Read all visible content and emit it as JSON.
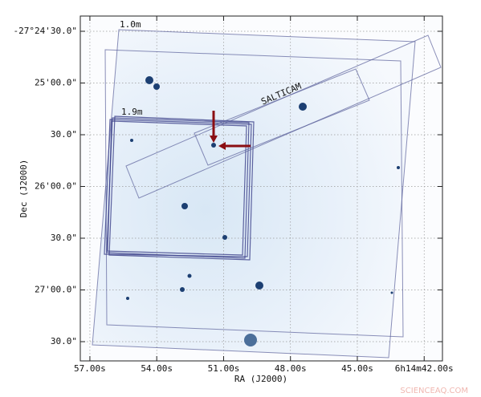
{
  "chart_data": {
    "type": "image",
    "x_label": "RA (J2000)",
    "y_label": "Dec (J2000)",
    "xlim": [
      57.43,
      41.18
    ],
    "ylim": [
      -27.461435,
      -27.405878
    ],
    "xticks": [
      {
        "value": 57,
        "label": "57.00s"
      },
      {
        "value": 54,
        "label": "54.00s"
      },
      {
        "value": 51,
        "label": "51.00s"
      },
      {
        "value": 48,
        "label": "48.00s"
      },
      {
        "value": 45,
        "label": "45.00s"
      },
      {
        "value": 42,
        "label": "6h14m42.00s"
      }
    ],
    "yticks": [
      {
        "value": -27.408333,
        "label": "-27°24'30.0\""
      },
      {
        "value": -27.416667,
        "label": "25'00.0\""
      },
      {
        "value": -27.425,
        "label": "30.0\""
      },
      {
        "value": -27.433333,
        "label": "26'00.0\""
      },
      {
        "value": -27.441667,
        "label": "30.0\""
      },
      {
        "value": -27.45,
        "label": "27'00.0\""
      },
      {
        "value": -27.458333,
        "label": "30.0\""
      }
    ],
    "grid": true,
    "annotations": [
      "1.0m",
      "1.9m",
      "SALTICAM"
    ],
    "watermark": "SCIENCEAQ.COM"
  }
}
